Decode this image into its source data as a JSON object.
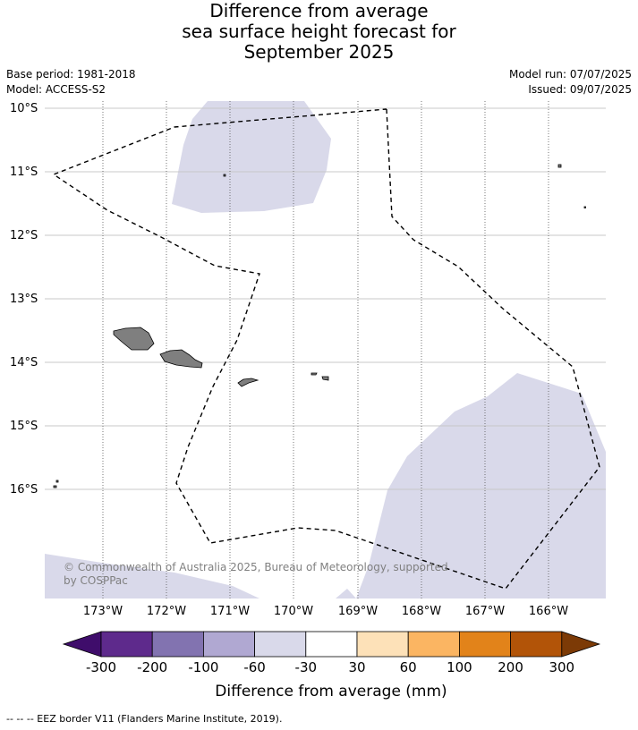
{
  "title": {
    "line1": "Difference from average",
    "line2": "sea surface height forecast for",
    "line3": "September 2025"
  },
  "meta": {
    "base_period": "Base period: 1981-2018",
    "model": "Model: ACCESS-S2",
    "model_run": "Model run: 07/07/2025",
    "issued": "Issued: 09/07/2025"
  },
  "map": {
    "lat_labels": [
      "10°S",
      "11°S",
      "12°S",
      "13°S",
      "14°S",
      "15°S",
      "16°S"
    ],
    "lon_labels": [
      "173°W",
      "172°W",
      "171°W",
      "170°W",
      "169°W",
      "168°W",
      "167°W",
      "166°W"
    ],
    "copyright": "© Commonwealth of Australia 2025, Bureau of Meteorology, supported by COSPPac",
    "anomaly_class_fill": "-60 to -30"
  },
  "colorbar": {
    "ticks": [
      "-300",
      "-200",
      "-100",
      "-60",
      "-30",
      "30",
      "60",
      "100",
      "200",
      "300"
    ],
    "colors": [
      "#3f0d6b",
      "#5e2a8c",
      "#8273b0",
      "#b0a8d2",
      "#d9d9ea",
      "#ffffff",
      "#fde1b8",
      "#fbb562",
      "#e2831a",
      "#b25408",
      "#7c3a06"
    ],
    "title": "Difference from average (mm)"
  },
  "footnote": "--  --  -- EEZ border V11 (Flanders Marine Institute, 2019)."
}
